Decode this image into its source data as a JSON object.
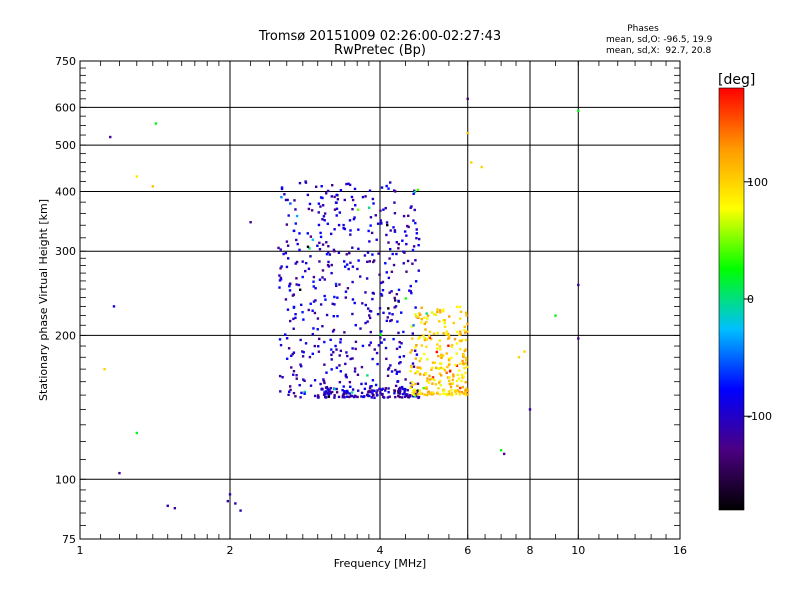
{
  "chart_data": {
    "type": "scatter",
    "title": "Tromsø 20151009 02:26:00-02:27:43",
    "subtitle": "RwPretec (Bp)",
    "xlabel": "Frequency [MHz]",
    "ylabel": "Stationary phase Virtual Height [km]",
    "x_scale": "log2",
    "y_scale": "log",
    "xlim": [
      1,
      16
    ],
    "ylim": [
      75,
      750
    ],
    "x_ticks": [
      1,
      2,
      4,
      6,
      8,
      10,
      16
    ],
    "y_ticks": [
      75,
      100,
      200,
      300,
      400,
      500,
      600,
      750
    ],
    "grid": true,
    "phase_box": {
      "title": "Phases",
      "line1": "mean, sd,O: -96.5, 19.9",
      "line2": "mean, sd,X:  92.7, 20.8"
    },
    "colorbar": {
      "label": "[deg]",
      "range": [
        -180,
        180
      ],
      "ticks": [
        100,
        0,
        -100
      ],
      "colors": [
        "#000000",
        "#4b0082",
        "#0000ff",
        "#00bfff",
        "#00ff00",
        "#ffff00",
        "#ff9900",
        "#ff0000"
      ]
    },
    "clusters": [
      {
        "name": "O-trace",
        "x_range": [
          2.5,
          4.8
        ],
        "y_range": [
          148,
          420
        ],
        "phase": -100
      },
      {
        "name": "O-base",
        "x_range": [
          3.0,
          4.8
        ],
        "y_range": [
          148,
          155
        ],
        "phase": -110
      },
      {
        "name": "X-trace",
        "x_range": [
          4.6,
          6.0
        ],
        "y_range": [
          150,
          230
        ],
        "phase": 100
      }
    ],
    "isolated_points": [
      {
        "x": 1.15,
        "y": 520,
        "phase": -120
      },
      {
        "x": 1.42,
        "y": 555,
        "phase": 20
      },
      {
        "x": 1.3,
        "y": 430,
        "phase": 90
      },
      {
        "x": 1.4,
        "y": 410,
        "phase": 110
      },
      {
        "x": 1.17,
        "y": 230,
        "phase": -90
      },
      {
        "x": 1.12,
        "y": 170,
        "phase": 100
      },
      {
        "x": 1.2,
        "y": 103,
        "phase": -120
      },
      {
        "x": 1.3,
        "y": 125,
        "phase": 20
      },
      {
        "x": 1.5,
        "y": 88,
        "phase": -110
      },
      {
        "x": 1.55,
        "y": 87,
        "phase": -120
      },
      {
        "x": 1.98,
        "y": 90,
        "phase": -110
      },
      {
        "x": 2.0,
        "y": 93,
        "phase": -110
      },
      {
        "x": 2.05,
        "y": 89,
        "phase": -110
      },
      {
        "x": 2.1,
        "y": 86,
        "phase": -110
      },
      {
        "x": 2.2,
        "y": 345,
        "phase": -120
      },
      {
        "x": 6.0,
        "y": 625,
        "phase": -130
      },
      {
        "x": 6.0,
        "y": 530,
        "phase": 110
      },
      {
        "x": 6.1,
        "y": 460,
        "phase": 100
      },
      {
        "x": 6.4,
        "y": 450,
        "phase": 100
      },
      {
        "x": 7.0,
        "y": 115,
        "phase": 20
      },
      {
        "x": 7.1,
        "y": 113,
        "phase": -120
      },
      {
        "x": 7.6,
        "y": 180,
        "phase": 100
      },
      {
        "x": 7.8,
        "y": 185,
        "phase": 100
      },
      {
        "x": 8.0,
        "y": 140,
        "phase": -110
      },
      {
        "x": 10.0,
        "y": 590,
        "phase": 20
      },
      {
        "x": 10.0,
        "y": 197,
        "phase": -120
      },
      {
        "x": 10.0,
        "y": 255,
        "phase": -110
      },
      {
        "x": 9.0,
        "y": 220,
        "phase": 20
      }
    ]
  }
}
